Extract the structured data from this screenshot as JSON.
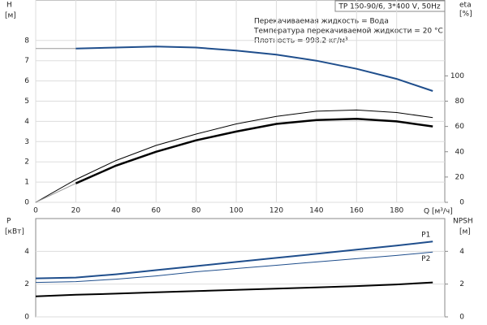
{
  "chart_data": [
    {
      "type": "line",
      "title": "TP 150-90/6, 3*400 V, 50Hz",
      "annotations": [
        "Перекачиваемая жидкость = Вода",
        "Температура перекачиваемой жидкости = 20 °C",
        "Плотность = 998.2 кг/м³"
      ],
      "xlabel": "Q [м³/ч]",
      "ylabel": "H",
      "yunit": "[м]",
      "y2label": "eta",
      "y2unit": "[%]",
      "x": [
        0,
        20,
        40,
        60,
        80,
        100,
        120,
        140,
        160,
        180,
        198
      ],
      "xlim": [
        0,
        204
      ],
      "xticks": [
        0,
        20,
        40,
        60,
        80,
        100,
        120,
        140,
        160,
        180
      ],
      "ylim": [
        0,
        10
      ],
      "yticks": [
        0,
        1,
        2,
        3,
        4,
        5,
        6,
        7,
        8
      ],
      "y2lim": [
        0,
        160
      ],
      "y2ticks": [
        0,
        20,
        40,
        60,
        80,
        100
      ],
      "grid": true,
      "series": [
        {
          "color": "#999999",
          "width": 1,
          "values": [
            7.6,
            7.6,
            null,
            null,
            null,
            null,
            null,
            null,
            null,
            null,
            null
          ]
        },
        {
          "color": "#1f4e8c",
          "width": 2,
          "values": [
            null,
            7.6,
            7.65,
            7.7,
            7.65,
            7.5,
            7.3,
            7.0,
            6.6,
            6.1,
            5.5
          ]
        },
        {
          "color": "#000000",
          "width": 1,
          "axis": "y2",
          "values": [
            0,
            18,
            33,
            45,
            54,
            62,
            68,
            72,
            73,
            71,
            67
          ]
        },
        {
          "color": "#999999",
          "width": 1,
          "axis": "y2",
          "values": [
            0,
            15,
            null,
            null,
            null,
            null,
            null,
            null,
            null,
            null,
            null
          ]
        },
        {
          "color": "#000000",
          "width": 2.5,
          "axis": "y2",
          "values": [
            null,
            15,
            29,
            40,
            49,
            56,
            62,
            65,
            66,
            64,
            60
          ]
        }
      ]
    },
    {
      "type": "line",
      "ylabel": "P",
      "yunit": "[кВт]",
      "y2label": "NPSH",
      "y2unit": "[м]",
      "x": [
        0,
        20,
        40,
        60,
        80,
        100,
        120,
        140,
        160,
        180,
        198
      ],
      "xlim": [
        0,
        204
      ],
      "ylim": [
        0,
        6
      ],
      "yticks": [
        0,
        2,
        4
      ],
      "y2lim": [
        0,
        6
      ],
      "y2ticks": [
        0,
        2,
        4
      ],
      "grid": true,
      "series": [
        {
          "name": "P1",
          "color": "#1f4e8c",
          "width": 2,
          "values": [
            2.35,
            2.4,
            2.6,
            2.85,
            3.1,
            3.35,
            3.6,
            3.85,
            4.1,
            4.35,
            4.6
          ]
        },
        {
          "name": "P2",
          "color": "#1f4e8c",
          "width": 1,
          "values": [
            2.1,
            2.15,
            2.3,
            2.5,
            2.75,
            2.95,
            3.15,
            3.35,
            3.55,
            3.75,
            3.95
          ]
        },
        {
          "color": "#000000",
          "width": 2,
          "axis": "y2",
          "values": [
            1.25,
            1.35,
            1.42,
            1.5,
            1.57,
            1.65,
            1.72,
            1.8,
            1.88,
            1.98,
            2.1
          ]
        }
      ]
    }
  ]
}
